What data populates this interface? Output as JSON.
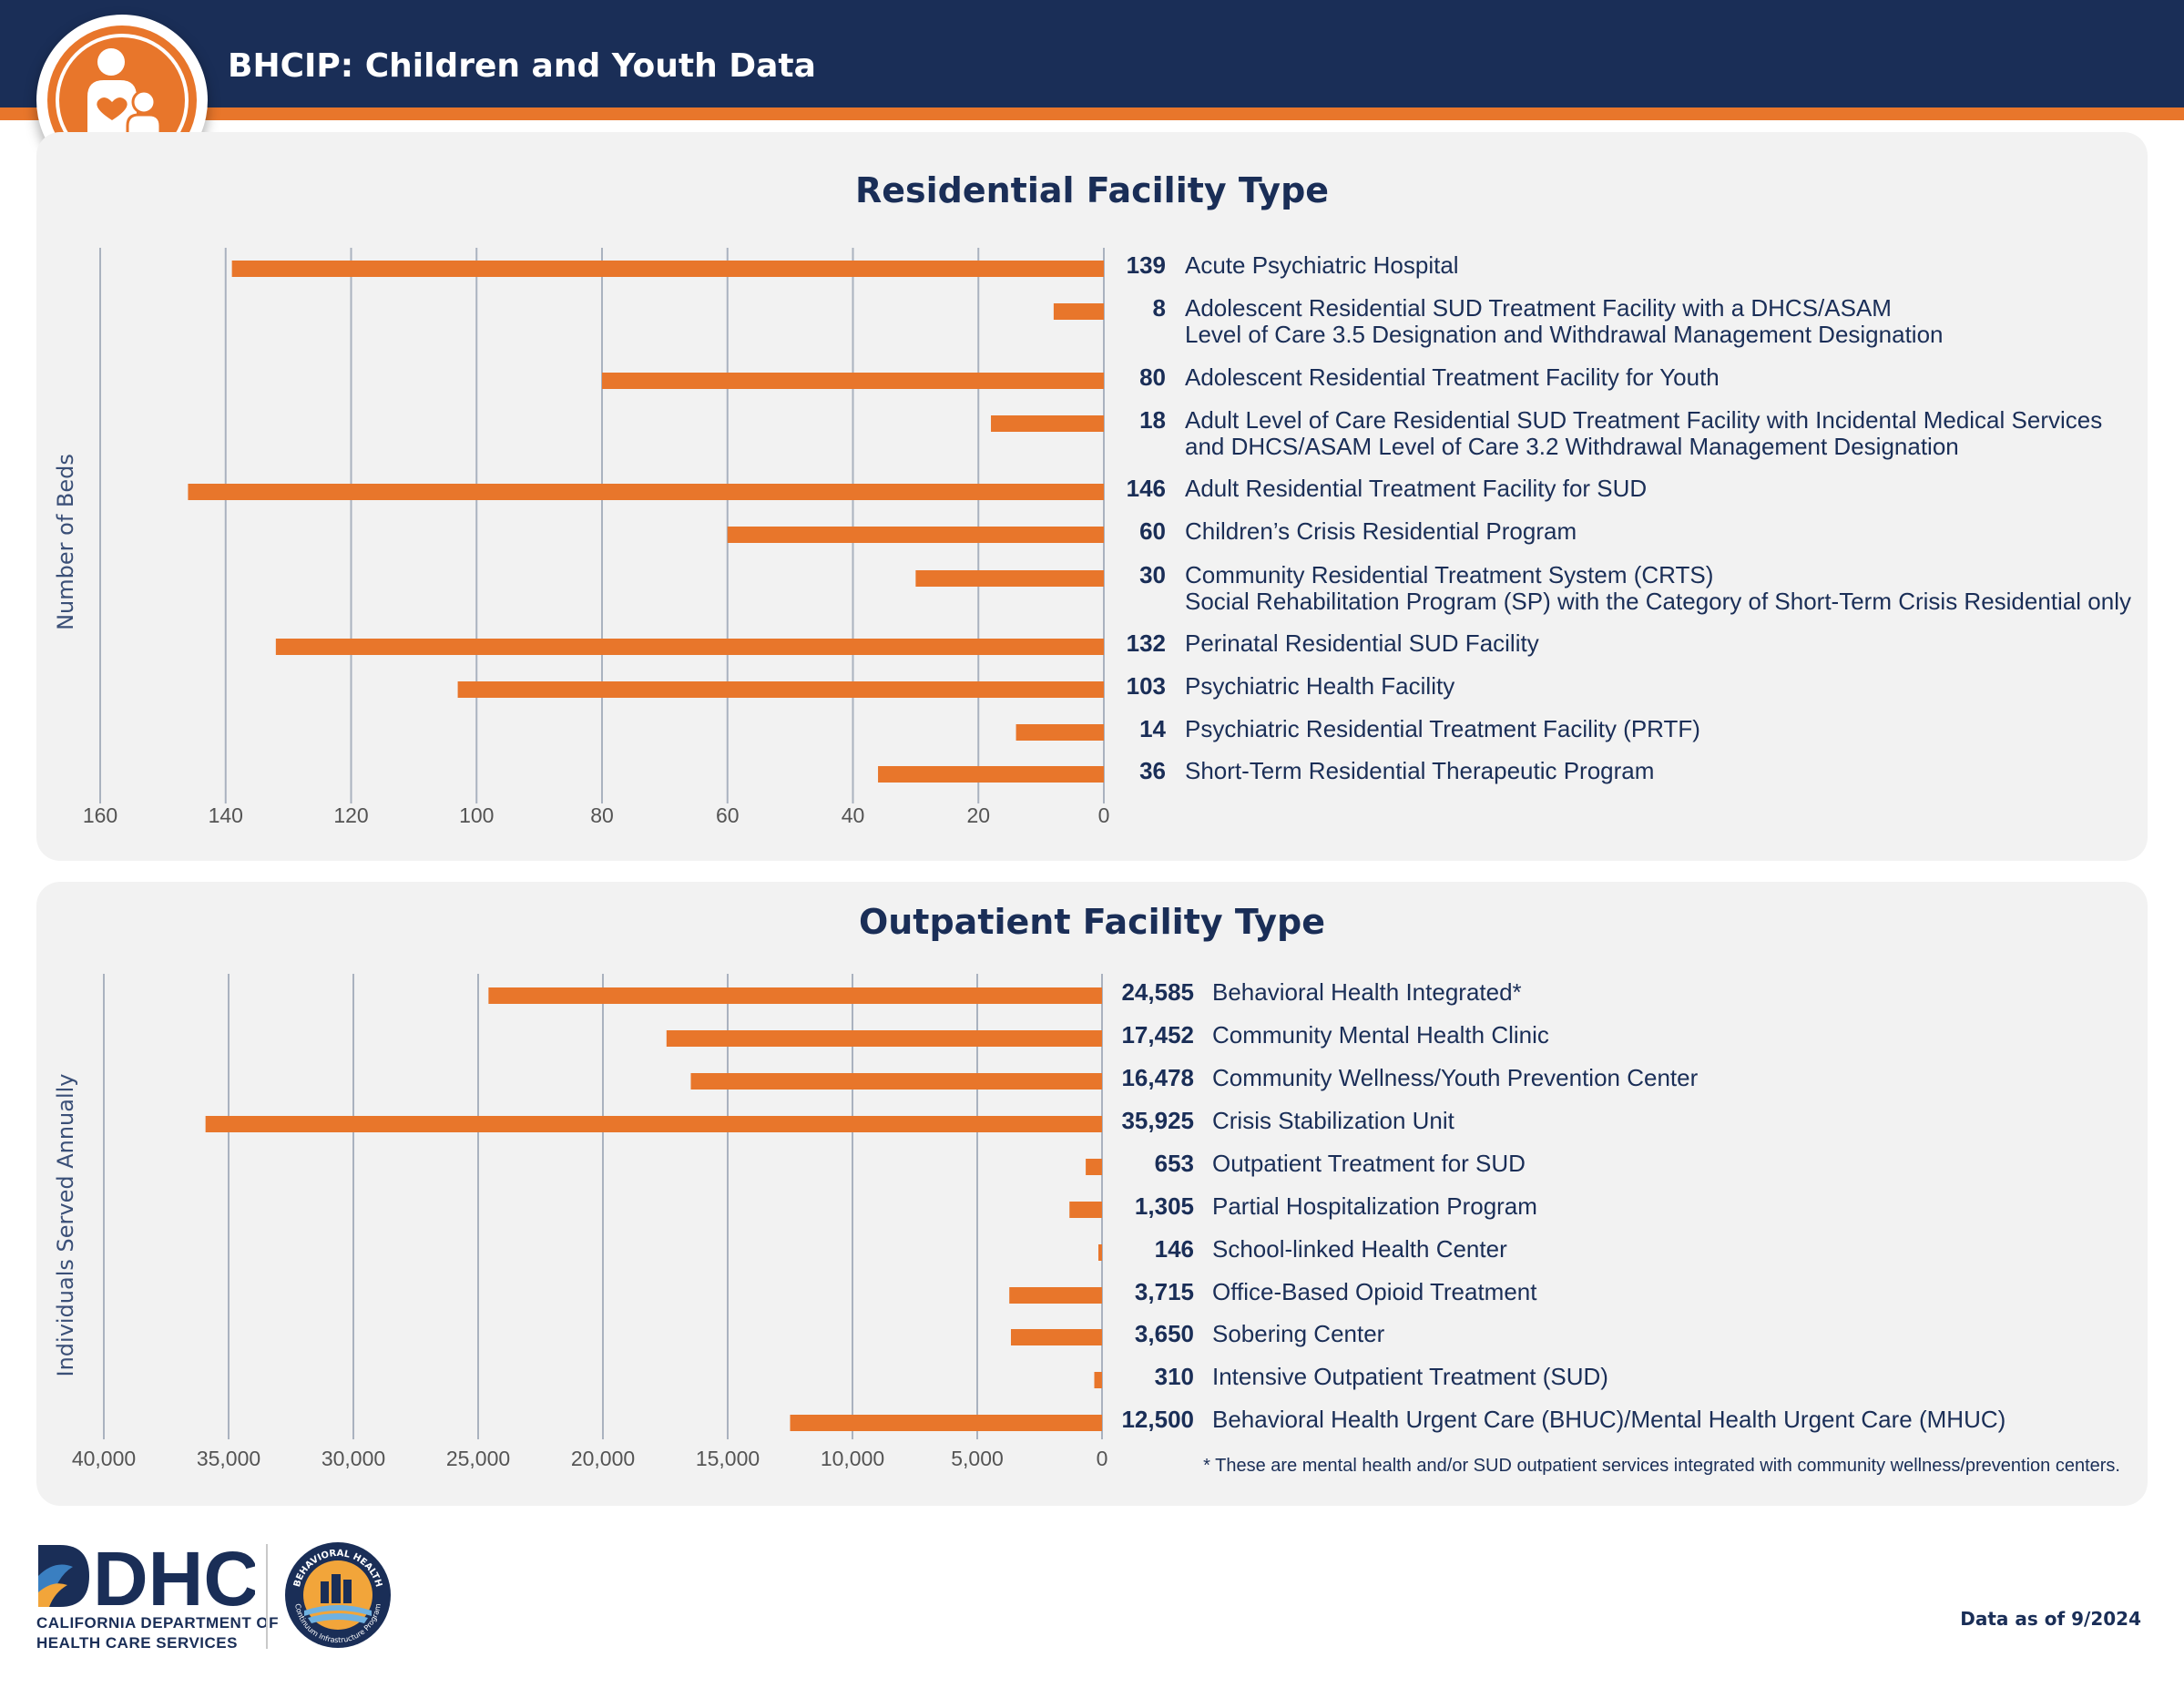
{
  "header": {
    "title": "BHCIP: Children and Youth Data"
  },
  "colors": {
    "navy": "#1a2e57",
    "orange": "#e8762b",
    "panel": "#f2f2f2",
    "grid": "#aab2bf"
  },
  "chart_data": [
    {
      "type": "bar",
      "orientation": "horizontal-reversed",
      "title": "Residential Facility Type",
      "ylabel": "Number of Beds",
      "xlim": [
        0,
        160
      ],
      "ticks": [
        0,
        20,
        40,
        60,
        80,
        100,
        120,
        140,
        160
      ],
      "tick_labels": [
        "0",
        "20",
        "40",
        "60",
        "80",
        "100",
        "120",
        "140",
        "160"
      ],
      "grid": true,
      "rows": [
        {
          "value": 139,
          "value_label": "139",
          "lines": [
            "Acute Psychiatric Hospital"
          ]
        },
        {
          "value": 8,
          "value_label": "8",
          "lines": [
            "Adolescent Residential SUD Treatment Facility with a DHCS/ASAM",
            "Level of Care 3.5 Designation and Withdrawal Management Designation"
          ]
        },
        {
          "value": 80,
          "value_label": "80",
          "lines": [
            "Adolescent Residential Treatment Facility for Youth"
          ]
        },
        {
          "value": 18,
          "value_label": "18",
          "lines": [
            "Adult Level of Care Residential SUD Treatment Facility with Incidental Medical Services",
            "and DHCS/ASAM Level of Care 3.2 Withdrawal Management Designation"
          ]
        },
        {
          "value": 146,
          "value_label": "146",
          "lines": [
            "Adult Residential Treatment Facility for SUD"
          ]
        },
        {
          "value": 60,
          "value_label": "60",
          "lines": [
            "Children’s Crisis Residential Program"
          ]
        },
        {
          "value": 30,
          "value_label": "30",
          "lines": [
            "Community Residential Treatment System (CRTS)",
            "Social Rehabilitation Program (SP) with the Category of Short-Term Crisis Residential only"
          ]
        },
        {
          "value": 132,
          "value_label": "132",
          "lines": [
            "Perinatal Residential SUD Facility"
          ]
        },
        {
          "value": 103,
          "value_label": "103",
          "lines": [
            "Psychiatric Health Facility"
          ]
        },
        {
          "value": 14,
          "value_label": "14",
          "lines": [
            "Psychiatric Residential Treatment Facility (PRTF)"
          ]
        },
        {
          "value": 36,
          "value_label": "36",
          "lines": [
            "Short-Term Residential Therapeutic Program"
          ]
        }
      ]
    },
    {
      "type": "bar",
      "orientation": "horizontal-reversed",
      "title": "Outpatient Facility Type",
      "ylabel": "Individuals Served Annually",
      "xlim": [
        0,
        40000
      ],
      "ticks": [
        0,
        5000,
        10000,
        15000,
        20000,
        25000,
        30000,
        35000,
        40000
      ],
      "tick_labels": [
        "0",
        "5,000",
        "10,000",
        "15,000",
        "20,000",
        "25,000",
        "30,000",
        "35,000",
        "40,000"
      ],
      "grid": true,
      "footnote": "* These are mental health and/or SUD outpatient services integrated with community wellness/prevention centers.",
      "rows": [
        {
          "value": 24585,
          "value_label": "24,585",
          "lines": [
            "Behavioral Health Integrated*"
          ]
        },
        {
          "value": 17452,
          "value_label": "17,452",
          "lines": [
            "Community Mental Health Clinic"
          ]
        },
        {
          "value": 16478,
          "value_label": "16,478",
          "lines": [
            "Community Wellness/Youth Prevention Center"
          ]
        },
        {
          "value": 35925,
          "value_label": "35,925",
          "lines": [
            "Crisis Stabilization Unit"
          ]
        },
        {
          "value": 653,
          "value_label": "653",
          "lines": [
            "Outpatient Treatment for SUD"
          ]
        },
        {
          "value": 1305,
          "value_label": "1,305",
          "lines": [
            "Partial Hospitalization Program"
          ]
        },
        {
          "value": 146,
          "value_label": "146",
          "lines": [
            "School-linked Health Center"
          ]
        },
        {
          "value": 3715,
          "value_label": "3,715",
          "lines": [
            "Office-Based Opioid Treatment"
          ]
        },
        {
          "value": 3650,
          "value_label": "3,650",
          "lines": [
            "Sobering Center"
          ]
        },
        {
          "value": 310,
          "value_label": "310",
          "lines": [
            "Intensive Outpatient Treatment (SUD)"
          ]
        },
        {
          "value": 12500,
          "value_label": "12,500",
          "lines": [
            "Behavioral Health Urgent Care (BHUC)/Mental Health Urgent Care (MHUC)"
          ]
        }
      ]
    }
  ],
  "footer": {
    "dhcs_logo_text": "DHCS",
    "dhcs_line1": "CALIFORNIA DEPARTMENT OF",
    "dhcs_line2": "HEALTH CARE SERVICES",
    "seal_top_text": "BEHAVIORAL HEALTH",
    "seal_bottom_text": "Continuum Infrastructure Program",
    "data_as_of": "Data as of 9/2024"
  },
  "icons": {
    "header_logo": "parent-child-icon",
    "seal": "bh-seal-icon"
  }
}
